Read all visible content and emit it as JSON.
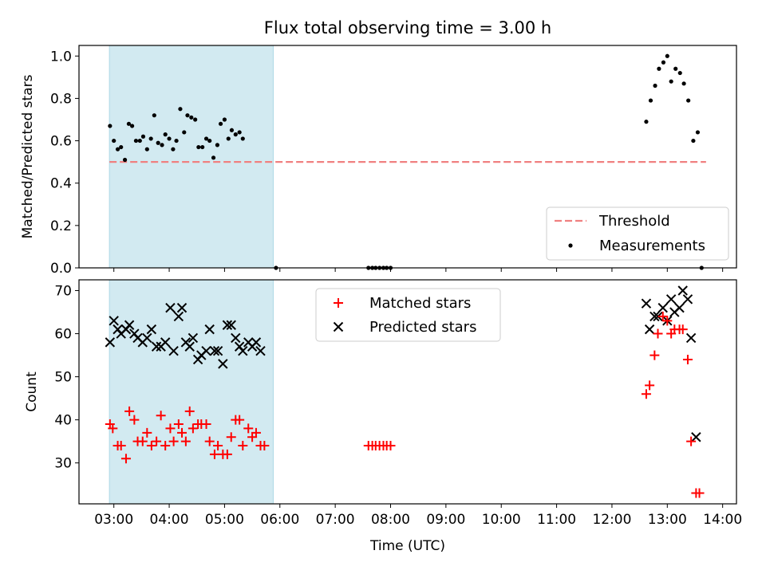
{
  "chart_data": {
    "title": "Flux total observing time = 3.00 h",
    "colors": {
      "threshold": "#f08080",
      "measurements": "#000000",
      "matched": "#ff0000",
      "predicted": "#000000",
      "shade": "#add8e6"
    },
    "x_axis": {
      "label": "Time (UTC)",
      "range_hours": [
        2.37,
        14.25
      ],
      "tick_labels": [
        "03:00",
        "04:00",
        "05:00",
        "06:00",
        "07:00",
        "08:00",
        "09:00",
        "10:00",
        "11:00",
        "12:00",
        "13:00",
        "14:00"
      ]
    },
    "shaded_span_hours": [
      2.92,
      5.88
    ],
    "charts": [
      {
        "type": "scatter",
        "ylabel": "Matched/Predicted stars",
        "ylim": [
          0,
          1.05
        ],
        "yticks": [
          "0.0",
          "0.2",
          "0.4",
          "0.6",
          "0.8",
          "1.0"
        ],
        "legend_position": "lower right",
        "legend": [
          "Threshold",
          "Measurements"
        ],
        "threshold": {
          "name": "Threshold",
          "y": 0.5,
          "x_range": [
            2.92,
            13.7
          ],
          "style": "dashed"
        },
        "measurements": {
          "name": "Measurements",
          "points": [
            [
              2.93,
              0.67
            ],
            [
              3.0,
              0.6
            ],
            [
              3.07,
              0.56
            ],
            [
              3.13,
              0.57
            ],
            [
              3.2,
              0.51
            ],
            [
              3.27,
              0.68
            ],
            [
              3.33,
              0.67
            ],
            [
              3.4,
              0.6
            ],
            [
              3.47,
              0.6
            ],
            [
              3.53,
              0.62
            ],
            [
              3.6,
              0.56
            ],
            [
              3.67,
              0.61
            ],
            [
              3.73,
              0.72
            ],
            [
              3.8,
              0.59
            ],
            [
              3.87,
              0.58
            ],
            [
              3.93,
              0.63
            ],
            [
              4.0,
              0.61
            ],
            [
              4.07,
              0.56
            ],
            [
              4.13,
              0.6
            ],
            [
              4.2,
              0.75
            ],
            [
              4.27,
              0.64
            ],
            [
              4.33,
              0.72
            ],
            [
              4.4,
              0.71
            ],
            [
              4.47,
              0.7
            ],
            [
              4.53,
              0.57
            ],
            [
              4.6,
              0.57
            ],
            [
              4.67,
              0.61
            ],
            [
              4.73,
              0.6
            ],
            [
              4.8,
              0.52
            ],
            [
              4.87,
              0.58
            ],
            [
              4.93,
              0.68
            ],
            [
              5.0,
              0.7
            ],
            [
              5.07,
              0.61
            ],
            [
              5.13,
              0.65
            ],
            [
              5.2,
              0.63
            ],
            [
              5.27,
              0.64
            ],
            [
              5.33,
              0.61
            ],
            [
              5.93,
              0.0
            ],
            [
              7.6,
              0.0
            ],
            [
              7.67,
              0.0
            ],
            [
              7.73,
              0.0
            ],
            [
              7.8,
              0.0
            ],
            [
              7.87,
              0.0
            ],
            [
              7.93,
              0.0
            ],
            [
              8.0,
              0.0
            ],
            [
              12.62,
              0.69
            ],
            [
              12.7,
              0.79
            ],
            [
              12.78,
              0.86
            ],
            [
              12.85,
              0.94
            ],
            [
              12.93,
              0.97
            ],
            [
              13.0,
              1.0
            ],
            [
              13.07,
              0.88
            ],
            [
              13.15,
              0.94
            ],
            [
              13.23,
              0.92
            ],
            [
              13.3,
              0.87
            ],
            [
              13.38,
              0.79
            ],
            [
              13.47,
              0.6
            ],
            [
              13.55,
              0.64
            ],
            [
              13.62,
              0.0
            ]
          ]
        }
      },
      {
        "type": "scatter",
        "ylabel": "Count",
        "ylim": [
          20.5,
          72.5
        ],
        "yticks": [
          "30",
          "40",
          "50",
          "60",
          "70"
        ],
        "legend_position": "upper center",
        "legend": [
          "Matched stars",
          "Predicted stars"
        ],
        "series": [
          {
            "name": "Matched stars",
            "marker": "+",
            "points": [
              [
                2.93,
                39
              ],
              [
                2.98,
                38
              ],
              [
                3.07,
                34
              ],
              [
                3.13,
                34
              ],
              [
                3.22,
                31
              ],
              [
                3.28,
                42
              ],
              [
                3.37,
                40
              ],
              [
                3.43,
                35
              ],
              [
                3.52,
                35
              ],
              [
                3.6,
                37
              ],
              [
                3.68,
                34
              ],
              [
                3.77,
                35
              ],
              [
                3.85,
                41
              ],
              [
                3.93,
                34
              ],
              [
                4.02,
                38
              ],
              [
                4.08,
                35
              ],
              [
                4.17,
                39
              ],
              [
                4.23,
                37
              ],
              [
                4.3,
                35
              ],
              [
                4.37,
                42
              ],
              [
                4.43,
                38
              ],
              [
                4.52,
                39
              ],
              [
                4.58,
                39
              ],
              [
                4.67,
                39
              ],
              [
                4.73,
                35
              ],
              [
                4.82,
                32
              ],
              [
                4.88,
                34
              ],
              [
                4.97,
                32
              ],
              [
                5.05,
                32
              ],
              [
                5.12,
                36
              ],
              [
                5.2,
                40
              ],
              [
                5.27,
                40
              ],
              [
                5.33,
                34
              ],
              [
                5.43,
                38
              ],
              [
                5.5,
                36
              ],
              [
                5.57,
                37
              ],
              [
                5.65,
                34
              ],
              [
                5.72,
                34
              ],
              [
                7.6,
                34
              ],
              [
                7.67,
                34
              ],
              [
                7.73,
                34
              ],
              [
                7.8,
                34
              ],
              [
                7.87,
                34
              ],
              [
                7.93,
                34
              ],
              [
                8.0,
                34
              ],
              [
                12.62,
                46
              ],
              [
                12.68,
                48
              ],
              [
                12.77,
                55
              ],
              [
                12.83,
                60
              ],
              [
                12.92,
                64
              ],
              [
                13.0,
                63
              ],
              [
                13.07,
                60
              ],
              [
                13.13,
                61
              ],
              [
                13.22,
                61
              ],
              [
                13.28,
                61
              ],
              [
                13.37,
                54
              ],
              [
                13.43,
                35
              ],
              [
                13.52,
                23
              ],
              [
                13.58,
                23
              ]
            ]
          },
          {
            "name": "Predicted stars",
            "marker": "x",
            "points": [
              [
                2.93,
                58
              ],
              [
                3.0,
                63
              ],
              [
                3.07,
                61
              ],
              [
                3.13,
                60
              ],
              [
                3.22,
                61
              ],
              [
                3.28,
                62
              ],
              [
                3.37,
                60
              ],
              [
                3.43,
                59
              ],
              [
                3.52,
                58
              ],
              [
                3.6,
                59
              ],
              [
                3.68,
                61
              ],
              [
                3.77,
                57
              ],
              [
                3.85,
                57
              ],
              [
                3.93,
                58
              ],
              [
                4.02,
                66
              ],
              [
                4.08,
                56
              ],
              [
                4.17,
                64
              ],
              [
                4.23,
                66
              ],
              [
                4.3,
                58
              ],
              [
                4.37,
                57
              ],
              [
                4.43,
                59
              ],
              [
                4.52,
                54
              ],
              [
                4.58,
                55
              ],
              [
                4.67,
                56
              ],
              [
                4.73,
                61
              ],
              [
                4.82,
                56
              ],
              [
                4.88,
                56
              ],
              [
                4.97,
                53
              ],
              [
                5.05,
                62
              ],
              [
                5.12,
                62
              ],
              [
                5.2,
                59
              ],
              [
                5.27,
                57
              ],
              [
                5.33,
                56
              ],
              [
                5.43,
                58
              ],
              [
                5.5,
                57
              ],
              [
                5.57,
                58
              ],
              [
                5.65,
                56
              ],
              [
                12.62,
                67
              ],
              [
                12.68,
                61
              ],
              [
                12.77,
                64
              ],
              [
                12.83,
                64
              ],
              [
                12.92,
                66
              ],
              [
                13.0,
                63
              ],
              [
                13.07,
                68
              ],
              [
                13.13,
                65
              ],
              [
                13.22,
                66
              ],
              [
                13.28,
                70
              ],
              [
                13.37,
                68
              ],
              [
                13.43,
                59
              ],
              [
                13.52,
                36
              ]
            ]
          }
        ]
      }
    ]
  }
}
